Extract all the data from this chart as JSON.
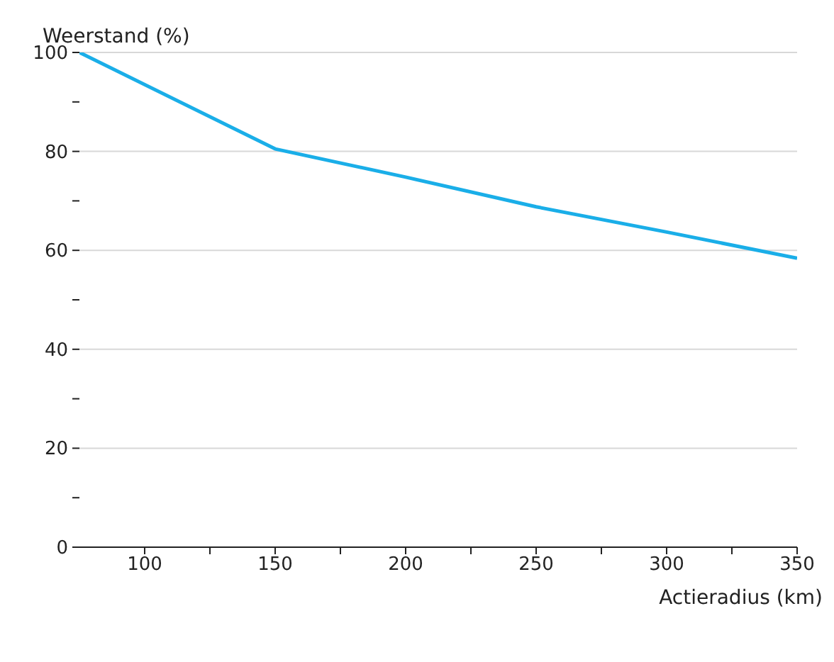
{
  "chart_data": {
    "type": "line",
    "xlabel": "Actieradius (km)",
    "ylabel": "Weerstand (%)",
    "x": [
      75,
      150,
      200,
      250,
      300,
      350
    ],
    "series": [
      {
        "color": "#1aaee8",
        "values": [
          100,
          80.5,
          74.8,
          68.8,
          63.7,
          58.4
        ]
      }
    ],
    "xlim": [
      75,
      350
    ],
    "xticks": [
      100,
      {
        "value": 125,
        "label": null
      },
      150,
      {
        "value": 175,
        "label": null
      },
      200,
      {
        "value": 225,
        "label": null
      },
      250,
      {
        "value": 275,
        "label": null
      },
      300,
      {
        "value": 325,
        "label": null
      },
      350
    ],
    "ylim": [
      0,
      100
    ],
    "yticks": [
      0,
      {
        "value": 10,
        "label": null
      },
      20,
      {
        "value": 30,
        "label": null
      },
      40,
      {
        "value": 50,
        "label": null
      },
      60,
      {
        "value": 70,
        "label": null
      },
      80,
      {
        "value": 90,
        "label": null
      },
      100
    ],
    "grid": "y",
    "marker": "none",
    "line_style": "solid"
  }
}
